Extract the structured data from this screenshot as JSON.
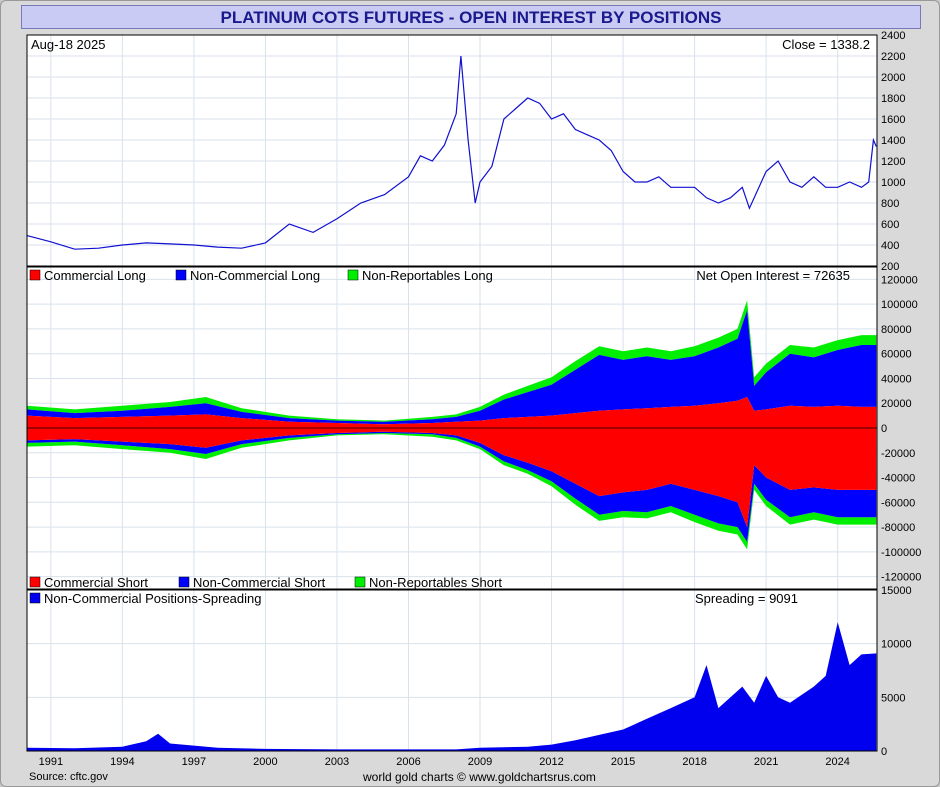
{
  "title": "PLATINUM COTS FUTURES - OPEN INTEREST BY POSITIONS",
  "source": "Source: cftc.gov",
  "credit": "world gold charts © www.goldchartsrus.com",
  "colors": {
    "price_line": "#1010d0",
    "commercial": "#ff0000",
    "non_commercial": "#0000ff",
    "non_reportable": "#00ee00",
    "spreading": "#0000ee",
    "grid": "#d8e2ec"
  },
  "x_tick_labels": [
    "1991",
    "1994",
    "1997",
    "2000",
    "2003",
    "2006",
    "2009",
    "2012",
    "2015",
    "2018",
    "2021",
    "2024"
  ],
  "chart_data": [
    {
      "type": "line",
      "panel": "price",
      "date_label": "Aug-18  2025",
      "close_label": "Close = 1338.2",
      "ylim": [
        200,
        2400
      ],
      "y_ticks": [
        200,
        400,
        600,
        800,
        1000,
        1200,
        1400,
        1600,
        1800,
        2000,
        2200,
        2400
      ],
      "x_range": [
        1990.0,
        2025.65
      ],
      "x": [
        1990.0,
        1991.0,
        1992.0,
        1993.0,
        1994.0,
        1995.0,
        1996.0,
        1997.0,
        1998.0,
        1999.0,
        2000.0,
        2001.0,
        2002.0,
        2003.0,
        2004.0,
        2005.0,
        2006.0,
        2006.5,
        2007.0,
        2007.5,
        2008.0,
        2008.2,
        2008.5,
        2008.8,
        2009.0,
        2009.5,
        2010.0,
        2010.5,
        2011.0,
        2011.5,
        2012.0,
        2012.5,
        2013.0,
        2013.5,
        2014.0,
        2014.5,
        2015.0,
        2015.5,
        2016.0,
        2016.5,
        2017.0,
        2017.5,
        2018.0,
        2018.5,
        2019.0,
        2019.5,
        2020.0,
        2020.3,
        2020.5,
        2021.0,
        2021.5,
        2022.0,
        2022.5,
        2023.0,
        2023.5,
        2024.0,
        2024.5,
        2025.0,
        2025.3,
        2025.5,
        2025.62
      ],
      "y": [
        490,
        430,
        360,
        370,
        400,
        420,
        410,
        400,
        380,
        370,
        420,
        600,
        520,
        650,
        800,
        880,
        1050,
        1250,
        1200,
        1350,
        1650,
        2200,
        1400,
        800,
        1000,
        1150,
        1600,
        1700,
        1800,
        1750,
        1600,
        1650,
        1500,
        1450,
        1400,
        1300,
        1100,
        1000,
        1000,
        1050,
        950,
        950,
        950,
        850,
        800,
        850,
        950,
        750,
        850,
        1100,
        1200,
        1000,
        950,
        1050,
        950,
        950,
        1000,
        950,
        1000,
        1400,
        1338
      ]
    },
    {
      "type": "area",
      "panel": "open_interest",
      "net_label": "Net Open Interest = 72635",
      "ylim": [
        -130000,
        130000
      ],
      "y_ticks": [
        120000,
        100000,
        80000,
        60000,
        40000,
        20000,
        0,
        -20000,
        -40000,
        -60000,
        -80000,
        -100000,
        -120000
      ],
      "legend_long": [
        "Commercial Long",
        "Non-Commercial Long",
        "Non-Reportables Long"
      ],
      "legend_short": [
        "Commercial Short",
        "Non-Commercial Short",
        "Non-Reportables Short"
      ],
      "x": [
        1990.0,
        1992.0,
        1994.0,
        1996.0,
        1997.5,
        1999.0,
        2001.0,
        2003.0,
        2005.0,
        2007.0,
        2008.0,
        2009.0,
        2010.0,
        2011.0,
        2012.0,
        2013.0,
        2014.0,
        2015.0,
        2016.0,
        2017.0,
        2018.0,
        2019.0,
        2019.8,
        2020.2,
        2020.5,
        2021.0,
        2022.0,
        2023.0,
        2024.0,
        2025.0,
        2025.62
      ],
      "long_commercial": [
        10000,
        8000,
        9000,
        10000,
        11000,
        8000,
        5000,
        4000,
        3000,
        4000,
        5000,
        6000,
        8000,
        9000,
        10000,
        12000,
        14000,
        15000,
        16000,
        17000,
        18000,
        20000,
        22000,
        25000,
        14000,
        15000,
        18000,
        17000,
        18000,
        17000,
        17000
      ],
      "long_non_commercial": [
        5000,
        4000,
        5000,
        7000,
        9000,
        5000,
        3000,
        2000,
        2000,
        3000,
        4000,
        8000,
        15000,
        20000,
        25000,
        35000,
        45000,
        40000,
        42000,
        38000,
        40000,
        45000,
        50000,
        70000,
        20000,
        30000,
        42000,
        40000,
        45000,
        50000,
        50000
      ],
      "long_non_reportable": [
        3000,
        3000,
        4000,
        4000,
        5000,
        3000,
        2000,
        1000,
        1000,
        2000,
        2000,
        3000,
        4000,
        5000,
        6000,
        7000,
        7000,
        7000,
        7000,
        7000,
        8000,
        8000,
        8000,
        8000,
        7000,
        7000,
        7000,
        8000,
        8000,
        8000,
        8000
      ],
      "short_commercial": [
        10000,
        9000,
        11000,
        13000,
        16000,
        10000,
        6000,
        4000,
        3000,
        4000,
        6000,
        12000,
        22000,
        28000,
        35000,
        45000,
        55000,
        52000,
        50000,
        45000,
        50000,
        55000,
        60000,
        80000,
        30000,
        40000,
        50000,
        48000,
        50000,
        50000,
        50000
      ],
      "short_non_commercial": [
        2000,
        2000,
        3000,
        4000,
        5000,
        3000,
        2000,
        1000,
        1000,
        1000,
        2000,
        3000,
        5000,
        6000,
        8000,
        12000,
        15000,
        15000,
        18000,
        18000,
        20000,
        22000,
        20000,
        12000,
        15000,
        18000,
        22000,
        20000,
        22000,
        22000,
        22000
      ],
      "short_non_reportable": [
        3000,
        3000,
        3000,
        3000,
        4000,
        3000,
        2000,
        1000,
        1000,
        2000,
        2000,
        2000,
        3000,
        3000,
        4000,
        5000,
        5000,
        5000,
        5000,
        5000,
        6000,
        6000,
        6000,
        6000,
        5000,
        5000,
        6000,
        6000,
        6000,
        6000,
        6000
      ]
    },
    {
      "type": "area",
      "panel": "spreading",
      "legend": "Non-Commercial Positions-Spreading",
      "value_label": "Spreading = 9091",
      "ylim": [
        0,
        15000
      ],
      "y_ticks": [
        15000,
        10000,
        5000,
        0
      ],
      "x": [
        1990.0,
        1992.0,
        1994.0,
        1995.0,
        1995.5,
        1996.0,
        1997.0,
        1998.0,
        2000.0,
        2003.0,
        2006.0,
        2008.0,
        2009.0,
        2011.0,
        2012.0,
        2013.0,
        2014.0,
        2015.0,
        2016.0,
        2017.0,
        2018.0,
        2018.5,
        2019.0,
        2020.0,
        2020.5,
        2021.0,
        2021.5,
        2022.0,
        2023.0,
        2023.5,
        2024.0,
        2024.5,
        2025.0,
        2025.62
      ],
      "y": [
        300,
        250,
        400,
        900,
        1600,
        700,
        500,
        300,
        200,
        150,
        150,
        150,
        300,
        400,
        600,
        1000,
        1500,
        2000,
        3000,
        4000,
        5000,
        8000,
        4000,
        6000,
        4500,
        7000,
        5000,
        4500,
        6000,
        7000,
        12000,
        8000,
        9000,
        9091
      ]
    }
  ]
}
